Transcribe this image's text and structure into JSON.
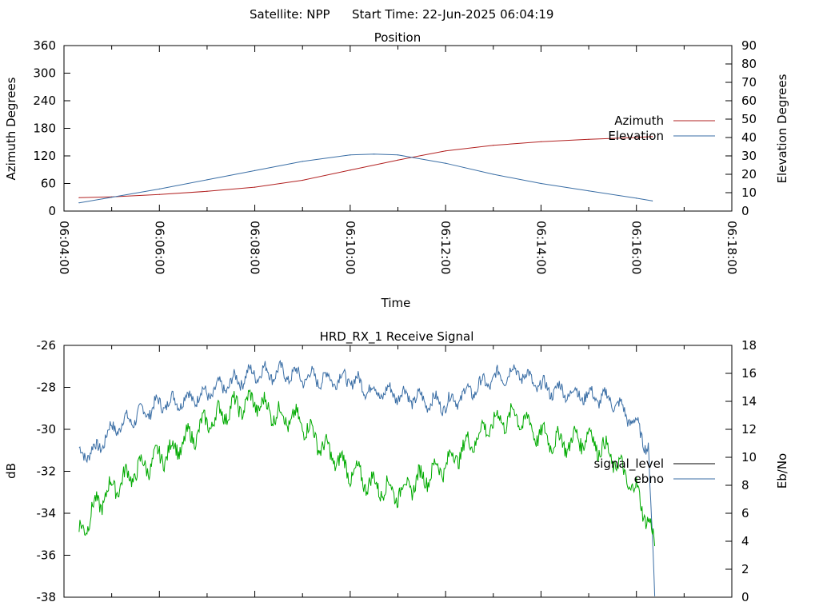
{
  "header": {
    "satellite": "Satellite: NPP",
    "start_time": "Start Time: 22-Jun-2025 06:04:19"
  },
  "chart_data": [
    {
      "type": "line",
      "title": "Position",
      "xlabel": "Time",
      "ylabel": "Azimuth Degrees",
      "y2label": "Elevation Degrees",
      "xlim": [
        "06:04:00",
        "06:18:00"
      ],
      "xticks": [
        "06:04:00",
        "06:06:00",
        "06:08:00",
        "06:10:00",
        "06:12:00",
        "06:14:00",
        "06:16:00",
        "06:18:00"
      ],
      "ylim": [
        0,
        360
      ],
      "yticks": [
        0,
        60,
        120,
        180,
        240,
        300,
        360
      ],
      "y2lim": [
        0,
        90
      ],
      "y2ticks": [
        0,
        10,
        20,
        30,
        40,
        50,
        60,
        70,
        80,
        90
      ],
      "legend_position": "right",
      "series": [
        {
          "name": "Azimuth",
          "axis": "y",
          "color": "#b22222",
          "x": [
            "06:04:19",
            "06:05:00",
            "06:06:00",
            "06:07:00",
            "06:08:00",
            "06:09:00",
            "06:10:00",
            "06:11:00",
            "06:12:00",
            "06:13:00",
            "06:14:00",
            "06:15:00",
            "06:16:00",
            "06:16:20"
          ],
          "values": [
            29,
            31,
            36,
            43,
            52,
            67,
            89,
            111,
            131,
            143,
            151,
            156,
            160,
            162
          ]
        },
        {
          "name": "Elevation",
          "axis": "y2",
          "color": "#3a6ea5",
          "x": [
            "06:04:19",
            "06:05:00",
            "06:06:00",
            "06:07:00",
            "06:08:00",
            "06:09:00",
            "06:10:00",
            "06:10:30",
            "06:11:00",
            "06:12:00",
            "06:13:00",
            "06:14:00",
            "06:15:00",
            "06:16:00",
            "06:16:20"
          ],
          "values": [
            4.5,
            7.5,
            12,
            17,
            22,
            27,
            30.5,
            31,
            30.5,
            26,
            20,
            15,
            11,
            7,
            5.5
          ]
        }
      ]
    },
    {
      "type": "line",
      "title": "HRD_RX_1 Receive Signal",
      "ylabel": "dB",
      "y2label": "Eb/No",
      "xlim": [
        "06:04:00",
        "06:18:00"
      ],
      "ylim": [
        -38,
        -26
      ],
      "yticks": [
        -38,
        -36,
        -34,
        -32,
        -30,
        -28,
        -26
      ],
      "y2lim": [
        0,
        18
      ],
      "y2ticks": [
        0,
        2,
        4,
        6,
        8,
        10,
        12,
        14,
        16,
        18
      ],
      "legend_position": "right",
      "series": [
        {
          "name": "signal_level",
          "axis": "y",
          "color": "#3a6ea5",
          "x": [
            "06:04:19",
            "06:04:40",
            "06:05:00",
            "06:05:30",
            "06:06:00",
            "06:06:30",
            "06:07:00",
            "06:07:30",
            "06:08:00",
            "06:08:30",
            "06:09:00",
            "06:09:30",
            "06:10:00",
            "06:10:30",
            "06:11:00",
            "06:11:30",
            "06:12:00",
            "06:12:30",
            "06:13:00",
            "06:13:30",
            "06:14:00",
            "06:14:30",
            "06:15:00",
            "06:15:30",
            "06:16:00",
            "06:16:15",
            "06:16:23"
          ],
          "values": [
            -31.2,
            -31.0,
            -30.0,
            -29.4,
            -28.8,
            -28.6,
            -28.3,
            -27.8,
            -27.3,
            -27.3,
            -27.5,
            -27.6,
            -27.6,
            -28.2,
            -28.3,
            -28.6,
            -28.8,
            -28.2,
            -27.6,
            -27.2,
            -28.0,
            -28.2,
            -28.4,
            -28.6,
            -29.8,
            -30.9,
            -38.0
          ]
        },
        {
          "name": "ebno",
          "axis": "y2",
          "color": "#00aa00",
          "x": [
            "06:04:19",
            "06:04:40",
            "06:05:00",
            "06:05:30",
            "06:06:00",
            "06:06:30",
            "06:07:00",
            "06:07:30",
            "06:08:00",
            "06:08:30",
            "06:09:00",
            "06:09:30",
            "06:10:00",
            "06:10:30",
            "06:11:00",
            "06:11:30",
            "06:12:00",
            "06:12:30",
            "06:13:00",
            "06:13:30",
            "06:14:00",
            "06:14:30",
            "06:15:00",
            "06:15:30",
            "06:16:00",
            "06:16:15",
            "06:16:23"
          ],
          "values": [
            4.5,
            6.5,
            7.8,
            9.0,
            10.0,
            11.0,
            12.5,
            13.5,
            14.0,
            13.0,
            12.5,
            10.5,
            9.0,
            8.0,
            7.5,
            8.5,
            9.5,
            11.0,
            12.5,
            13.0,
            11.5,
            11.0,
            11.5,
            10.0,
            7.5,
            5.5,
            3.5
          ]
        }
      ]
    }
  ]
}
